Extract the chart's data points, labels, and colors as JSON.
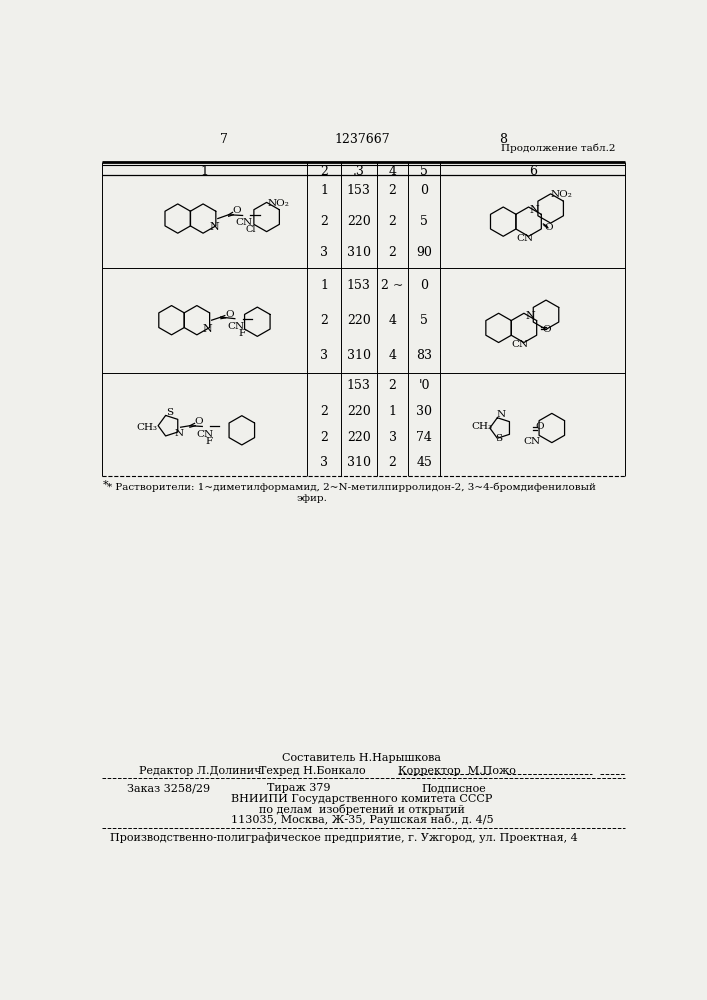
{
  "page_num_left": "7",
  "page_num_center": "1237667",
  "page_num_right": "8",
  "continuation_text": "Продолжение табл.2",
  "col_headers": [
    "1",
    "2",
    ".3",
    "4",
    "5",
    "6"
  ],
  "group1_rows": [
    [
      1,
      153,
      2,
      0
    ],
    [
      2,
      220,
      2,
      5
    ],
    [
      3,
      "310",
      2,
      90
    ]
  ],
  "group2_rows": [
    [
      1,
      153,
      "2 ~",
      0
    ],
    [
      2,
      220,
      4,
      5
    ],
    [
      3,
      310,
      4,
      83
    ]
  ],
  "group3_rows": [
    [
      "",
      153,
      2,
      "'0"
    ],
    [
      2,
      220,
      1,
      30
    ],
    [
      2,
      220,
      3,
      74
    ],
    [
      3,
      310,
      2,
      45
    ]
  ],
  "footnote_line1": "* Растворители: 1~диметилформамид, 2~N-метилпирролидон-2, 3~4-бромдифениловый",
  "footnote_line2": "эфир.",
  "composer": "Составитель Н.Нарышкова",
  "editor": "Редактор Л.Долинич",
  "techred": "Техред Н.Бонкало",
  "corrector": "Корректор  М.Пожо",
  "order": "Заказ 3258/29",
  "tirage": "Тираж 379",
  "subscription": "Подписное",
  "vnipi": "ВНИИПИ Государственного комитета СССР",
  "affairs": "по делам  изобретений и открытий",
  "address": "113035, Москва, Ж-35, Раушская наб., д. 4/5",
  "production": "Производственно-полиграфическое предприятие, г. Ужгород, ул. Проектная, 4",
  "bg_color": "#f0f0ec"
}
